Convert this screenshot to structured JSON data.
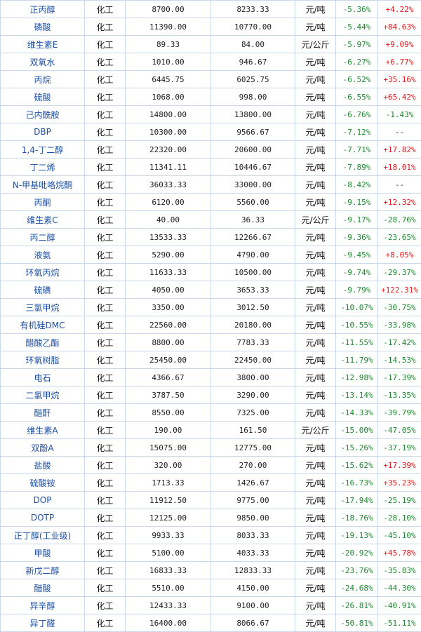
{
  "table": {
    "rows": [
      {
        "name": "正丙醇",
        "sector": "化工",
        "price1": "8700.00",
        "price2": "8233.33",
        "unit": "元/吨",
        "change": "-5.36%",
        "yoy": "+4.22%",
        "yoy_sign": "pos"
      },
      {
        "name": "磷酸",
        "sector": "化工",
        "price1": "11390.00",
        "price2": "10770.00",
        "unit": "元/吨",
        "change": "-5.44%",
        "yoy": "+84.63%",
        "yoy_sign": "pos"
      },
      {
        "name": "维生素E",
        "sector": "化工",
        "price1": "89.33",
        "price2": "84.00",
        "unit": "元/公斤",
        "change": "-5.97%",
        "yoy": "+9.09%",
        "yoy_sign": "pos"
      },
      {
        "name": "双氧水",
        "sector": "化工",
        "price1": "1010.00",
        "price2": "946.67",
        "unit": "元/吨",
        "change": "-6.27%",
        "yoy": "+6.77%",
        "yoy_sign": "pos"
      },
      {
        "name": "丙烷",
        "sector": "化工",
        "price1": "6445.75",
        "price2": "6025.75",
        "unit": "元/吨",
        "change": "-6.52%",
        "yoy": "+35.16%",
        "yoy_sign": "pos"
      },
      {
        "name": "硫酸",
        "sector": "化工",
        "price1": "1068.00",
        "price2": "998.00",
        "unit": "元/吨",
        "change": "-6.55%",
        "yoy": "+65.42%",
        "yoy_sign": "pos"
      },
      {
        "name": "己内酰胺",
        "sector": "化工",
        "price1": "14800.00",
        "price2": "13800.00",
        "unit": "元/吨",
        "change": "-6.76%",
        "yoy": "-1.43%",
        "yoy_sign": "neg"
      },
      {
        "name": "DBP",
        "sector": "化工",
        "price1": "10300.00",
        "price2": "9566.67",
        "unit": "元/吨",
        "change": "-7.12%",
        "yoy": "--",
        "yoy_sign": "na"
      },
      {
        "name": "1,4-丁二醇",
        "sector": "化工",
        "price1": "22320.00",
        "price2": "20600.00",
        "unit": "元/吨",
        "change": "-7.71%",
        "yoy": "+17.82%",
        "yoy_sign": "pos"
      },
      {
        "name": "丁二烯",
        "sector": "化工",
        "price1": "11341.11",
        "price2": "10446.67",
        "unit": "元/吨",
        "change": "-7.89%",
        "yoy": "+18.01%",
        "yoy_sign": "pos"
      },
      {
        "name": "N-甲基吡咯烷酮",
        "sector": "化工",
        "price1": "36033.33",
        "price2": "33000.00",
        "unit": "元/吨",
        "change": "-8.42%",
        "yoy": "--",
        "yoy_sign": "na"
      },
      {
        "name": "丙酮",
        "sector": "化工",
        "price1": "6120.00",
        "price2": "5560.00",
        "unit": "元/吨",
        "change": "-9.15%",
        "yoy": "+12.32%",
        "yoy_sign": "pos"
      },
      {
        "name": "维生素C",
        "sector": "化工",
        "price1": "40.00",
        "price2": "36.33",
        "unit": "元/公斤",
        "change": "-9.17%",
        "yoy": "-28.76%",
        "yoy_sign": "neg"
      },
      {
        "name": "丙二醇",
        "sector": "化工",
        "price1": "13533.33",
        "price2": "12266.67",
        "unit": "元/吨",
        "change": "-9.36%",
        "yoy": "-23.65%",
        "yoy_sign": "neg"
      },
      {
        "name": "液氨",
        "sector": "化工",
        "price1": "5290.00",
        "price2": "4790.00",
        "unit": "元/吨",
        "change": "-9.45%",
        "yoy": "+8.05%",
        "yoy_sign": "pos"
      },
      {
        "name": "环氧丙烷",
        "sector": "化工",
        "price1": "11633.33",
        "price2": "10500.00",
        "unit": "元/吨",
        "change": "-9.74%",
        "yoy": "-29.37%",
        "yoy_sign": "neg"
      },
      {
        "name": "硫磺",
        "sector": "化工",
        "price1": "4050.00",
        "price2": "3653.33",
        "unit": "元/吨",
        "change": "-9.79%",
        "yoy": "+122.31%",
        "yoy_sign": "pos"
      },
      {
        "name": "三氯甲烷",
        "sector": "化工",
        "price1": "3350.00",
        "price2": "3012.50",
        "unit": "元/吨",
        "change": "-10.07%",
        "yoy": "-30.75%",
        "yoy_sign": "neg"
      },
      {
        "name": "有机硅DMC",
        "sector": "化工",
        "price1": "22560.00",
        "price2": "20180.00",
        "unit": "元/吨",
        "change": "-10.55%",
        "yoy": "-33.98%",
        "yoy_sign": "neg"
      },
      {
        "name": "醋酸乙酯",
        "sector": "化工",
        "price1": "8800.00",
        "price2": "7783.33",
        "unit": "元/吨",
        "change": "-11.55%",
        "yoy": "-17.42%",
        "yoy_sign": "neg"
      },
      {
        "name": "环氧树脂",
        "sector": "化工",
        "price1": "25450.00",
        "price2": "22450.00",
        "unit": "元/吨",
        "change": "-11.79%",
        "yoy": "-14.53%",
        "yoy_sign": "neg"
      },
      {
        "name": "电石",
        "sector": "化工",
        "price1": "4366.67",
        "price2": "3800.00",
        "unit": "元/吨",
        "change": "-12.98%",
        "yoy": "-17.39%",
        "yoy_sign": "neg"
      },
      {
        "name": "二氯甲烷",
        "sector": "化工",
        "price1": "3787.50",
        "price2": "3290.00",
        "unit": "元/吨",
        "change": "-13.14%",
        "yoy": "-13.35%",
        "yoy_sign": "neg"
      },
      {
        "name": "醋酐",
        "sector": "化工",
        "price1": "8550.00",
        "price2": "7325.00",
        "unit": "元/吨",
        "change": "-14.33%",
        "yoy": "-39.79%",
        "yoy_sign": "neg"
      },
      {
        "name": "维生素A",
        "sector": "化工",
        "price1": "190.00",
        "price2": "161.50",
        "unit": "元/公斤",
        "change": "-15.00%",
        "yoy": "-47.05%",
        "yoy_sign": "neg"
      },
      {
        "name": "双酚A",
        "sector": "化工",
        "price1": "15075.00",
        "price2": "12775.00",
        "unit": "元/吨",
        "change": "-15.26%",
        "yoy": "-37.19%",
        "yoy_sign": "neg"
      },
      {
        "name": "盐酸",
        "sector": "化工",
        "price1": "320.00",
        "price2": "270.00",
        "unit": "元/吨",
        "change": "-15.62%",
        "yoy": "+17.39%",
        "yoy_sign": "pos"
      },
      {
        "name": "硫酸铵",
        "sector": "化工",
        "price1": "1713.33",
        "price2": "1426.67",
        "unit": "元/吨",
        "change": "-16.73%",
        "yoy": "+35.23%",
        "yoy_sign": "pos"
      },
      {
        "name": "DOP",
        "sector": "化工",
        "price1": "11912.50",
        "price2": "9775.00",
        "unit": "元/吨",
        "change": "-17.94%",
        "yoy": "-25.19%",
        "yoy_sign": "neg"
      },
      {
        "name": "DOTP",
        "sector": "化工",
        "price1": "12125.00",
        "price2": "9850.00",
        "unit": "元/吨",
        "change": "-18.76%",
        "yoy": "-28.10%",
        "yoy_sign": "neg"
      },
      {
        "name": "正丁醇(工业级)",
        "sector": "化工",
        "price1": "9933.33",
        "price2": "8033.33",
        "unit": "元/吨",
        "change": "-19.13%",
        "yoy": "-45.10%",
        "yoy_sign": "neg"
      },
      {
        "name": "甲酸",
        "sector": "化工",
        "price1": "5100.00",
        "price2": "4033.33",
        "unit": "元/吨",
        "change": "-20.92%",
        "yoy": "+45.78%",
        "yoy_sign": "pos"
      },
      {
        "name": "新戊二醇",
        "sector": "化工",
        "price1": "16833.33",
        "price2": "12833.33",
        "unit": "元/吨",
        "change": "-23.76%",
        "yoy": "-35.83%",
        "yoy_sign": "neg"
      },
      {
        "name": "醋酸",
        "sector": "化工",
        "price1": "5510.00",
        "price2": "4150.00",
        "unit": "元/吨",
        "change": "-24.68%",
        "yoy": "-44.30%",
        "yoy_sign": "neg"
      },
      {
        "name": "异辛醇",
        "sector": "化工",
        "price1": "12433.33",
        "price2": "9100.00",
        "unit": "元/吨",
        "change": "-26.81%",
        "yoy": "-40.91%",
        "yoy_sign": "neg"
      },
      {
        "name": "异丁醛",
        "sector": "化工",
        "price1": "16400.00",
        "price2": "8066.67",
        "unit": "元/吨",
        "change": "-50.81%",
        "yoy": "-51.11%",
        "yoy_sign": "neg"
      }
    ]
  }
}
